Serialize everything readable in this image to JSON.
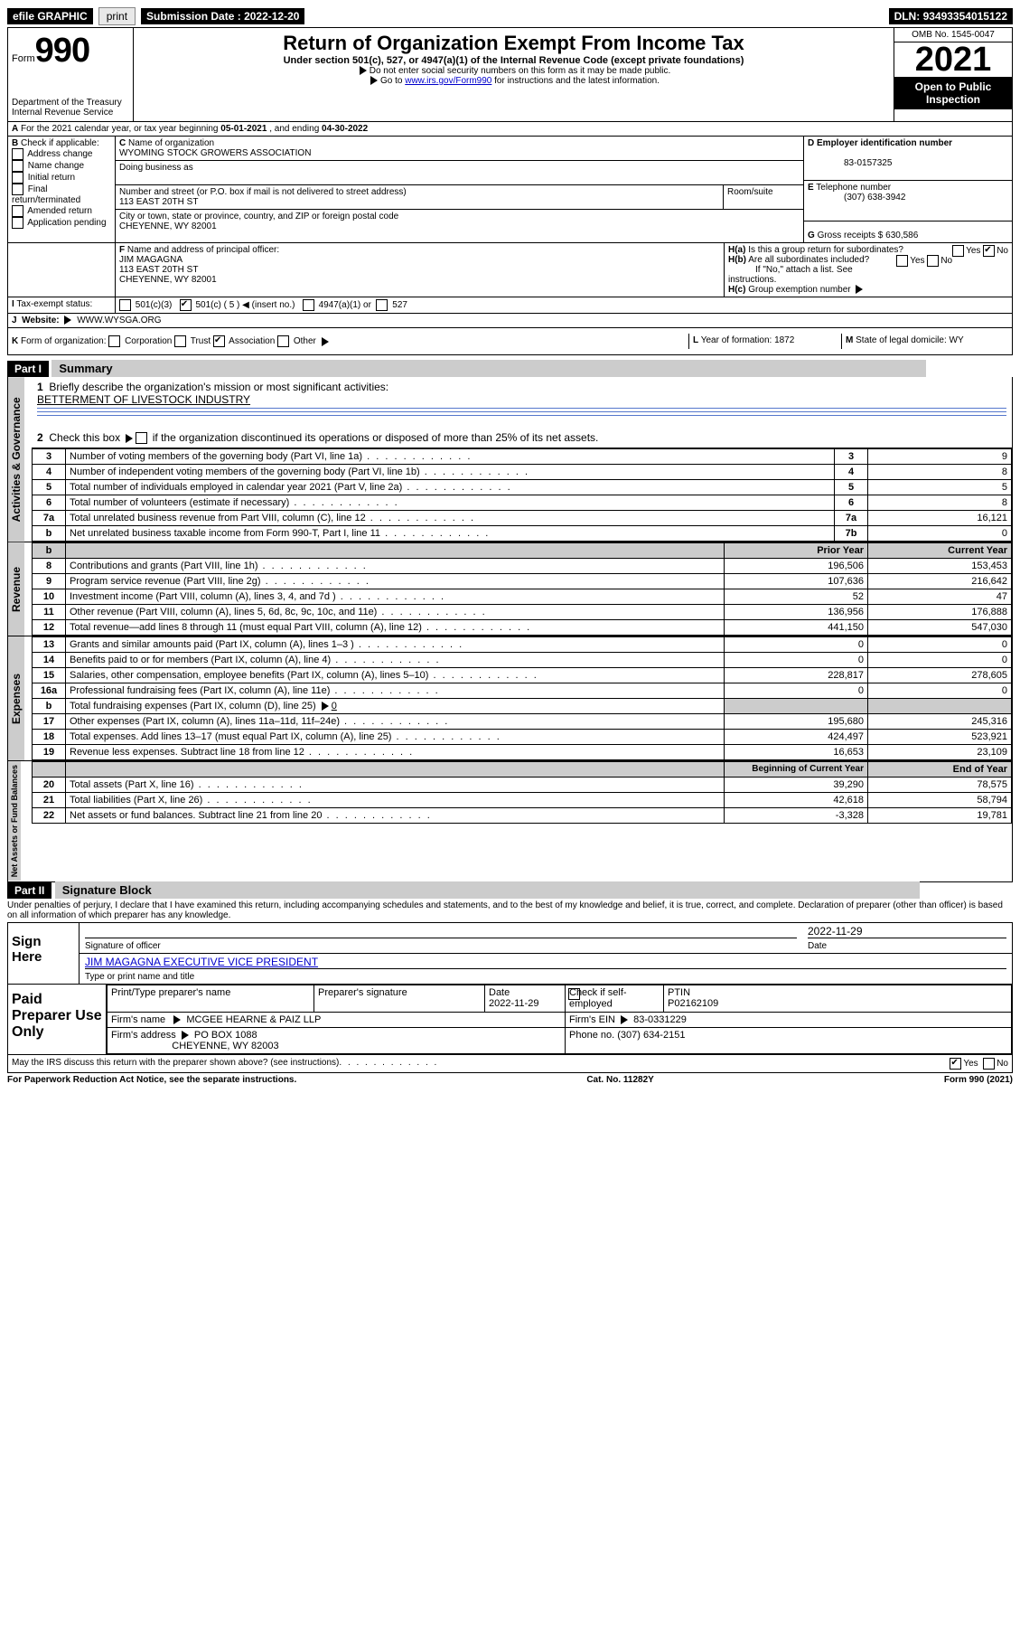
{
  "topbar": {
    "efile": "efile GRAPHIC",
    "print": "print",
    "subdate_lbl": "Submission Date : ",
    "subdate": "2022-12-20",
    "dln_lbl": "DLN: ",
    "dln": "93493354015122"
  },
  "hdr": {
    "form_word": "Form",
    "form_num": "990",
    "dept": "Department of the Treasury",
    "irs": "Internal Revenue Service",
    "title": "Return of Organization Exempt From Income Tax",
    "sub": "Under section 501(c), 527, or 4947(a)(1) of the Internal Revenue Code (except private foundations)",
    "note1": "Do not enter social security numbers on this form as it may be made public.",
    "note2_pre": "Go to ",
    "note2_link": "www.irs.gov/Form990",
    "note2_post": " for instructions and the latest information.",
    "omb": "OMB No. 1545-0047",
    "year": "2021",
    "open": "Open to Public Inspection"
  },
  "A": {
    "text_pre": "For the 2021 calendar year, or tax year beginning ",
    "begin": "05-01-2021",
    "mid": " , and ending ",
    "end": "04-30-2022"
  },
  "B": {
    "lbl": "Check if applicable:",
    "opts": [
      "Address change",
      "Name change",
      "Initial return",
      "Final return/terminated",
      "Amended return",
      "Application pending"
    ]
  },
  "C": {
    "name_lbl": "Name of organization",
    "name": "WYOMING STOCK GROWERS ASSOCIATION",
    "dba_lbl": "Doing business as",
    "addr_lbl": "Number and street (or P.O. box if mail is not delivered to street address)",
    "room_lbl": "Room/suite",
    "addr": "113 EAST 20TH ST",
    "city_lbl": "City or town, state or province, country, and ZIP or foreign postal code",
    "city": "CHEYENNE, WY  82001"
  },
  "D": {
    "lbl": "Employer identification number",
    "val": "83-0157325"
  },
  "E": {
    "lbl": "Telephone number",
    "val": "(307) 638-3942"
  },
  "G": {
    "lbl": "Gross receipts $ ",
    "val": "630,586"
  },
  "F": {
    "lbl": "Name and address of principal officer:",
    "name": "JIM MAGAGNA",
    "addr1": "113 EAST 20TH ST",
    "addr2": "CHEYENNE, WY  82001"
  },
  "H": {
    "a": "Is this a group return for subordinates?",
    "a_ans": "No",
    "b": "Are all subordinates included?",
    "b_note": "If \"No,\" attach a list. See instructions.",
    "c": "Group exemption number"
  },
  "I": {
    "lbl": "Tax-exempt status:",
    "o1": "501(c)(3)",
    "o2": "501(c) ( 5 )",
    "o2_note": "(insert no.)",
    "o3": "4947(a)(1) or",
    "o4": "527"
  },
  "J": {
    "lbl": "Website:",
    "val": "WWW.WYSGA.ORG"
  },
  "K": {
    "lbl": "Form of organization:",
    "o1": "Corporation",
    "o2": "Trust",
    "o3": "Association",
    "o4": "Other"
  },
  "L": {
    "lbl": "Year of formation: ",
    "val": "1872"
  },
  "M": {
    "lbl": "State of legal domicile: ",
    "val": "WY"
  },
  "partI": {
    "bar": "Part I",
    "title": "Summary",
    "l1": "Briefly describe the organization's mission or most significant activities:",
    "l1_val": "BETTERMENT OF LIVESTOCK INDUSTRY",
    "l2": "Check this box",
    "l2_post": "if the organization discontinued its operations or disposed of more than 25% of its net assets.",
    "rows_top": [
      {
        "n": "3",
        "t": "Number of voting members of the governing body (Part VI, line 1a)",
        "r": "3",
        "v": "9"
      },
      {
        "n": "4",
        "t": "Number of independent voting members of the governing body (Part VI, line 1b)",
        "r": "4",
        "v": "8"
      },
      {
        "n": "5",
        "t": "Total number of individuals employed in calendar year 2021 (Part V, line 2a)",
        "r": "5",
        "v": "5"
      },
      {
        "n": "6",
        "t": "Total number of volunteers (estimate if necessary)",
        "r": "6",
        "v": "8"
      },
      {
        "n": "7a",
        "t": "Total unrelated business revenue from Part VIII, column (C), line 12",
        "r": "7a",
        "v": "16,121"
      },
      {
        "n": "b",
        "t": "Net unrelated business taxable income from Form 990-T, Part I, line 11",
        "r": "7b",
        "v": "0"
      }
    ],
    "col_prior": "Prior Year",
    "col_current": "Current Year",
    "revenue": [
      {
        "n": "8",
        "t": "Contributions and grants (Part VIII, line 1h)",
        "p": "196,506",
        "c": "153,453"
      },
      {
        "n": "9",
        "t": "Program service revenue (Part VIII, line 2g)",
        "p": "107,636",
        "c": "216,642"
      },
      {
        "n": "10",
        "t": "Investment income (Part VIII, column (A), lines 3, 4, and 7d )",
        "p": "52",
        "c": "47"
      },
      {
        "n": "11",
        "t": "Other revenue (Part VIII, column (A), lines 5, 6d, 8c, 9c, 10c, and 11e)",
        "p": "136,956",
        "c": "176,888"
      },
      {
        "n": "12",
        "t": "Total revenue—add lines 8 through 11 (must equal Part VIII, column (A), line 12)",
        "p": "441,150",
        "c": "547,030"
      }
    ],
    "expenses": [
      {
        "n": "13",
        "t": "Grants and similar amounts paid (Part IX, column (A), lines 1–3 )",
        "p": "0",
        "c": "0"
      },
      {
        "n": "14",
        "t": "Benefits paid to or for members (Part IX, column (A), line 4)",
        "p": "0",
        "c": "0"
      },
      {
        "n": "15",
        "t": "Salaries, other compensation, employee benefits (Part IX, column (A), lines 5–10)",
        "p": "228,817",
        "c": "278,605"
      },
      {
        "n": "16a",
        "t": "Professional fundraising fees (Part IX, column (A), line 11e)",
        "p": "0",
        "c": "0"
      },
      {
        "n": "b",
        "t": "Total fundraising expenses (Part IX, column (D), line 25)",
        "sub": "0",
        "noval": true
      },
      {
        "n": "17",
        "t": "Other expenses (Part IX, column (A), lines 11a–11d, 11f–24e)",
        "p": "195,680",
        "c": "245,316"
      },
      {
        "n": "18",
        "t": "Total expenses. Add lines 13–17 (must equal Part IX, column (A), line 25)",
        "p": "424,497",
        "c": "523,921"
      },
      {
        "n": "19",
        "t": "Revenue less expenses. Subtract line 18 from line 12",
        "p": "16,653",
        "c": "23,109"
      }
    ],
    "col_begin": "Beginning of Current Year",
    "col_end": "End of Year",
    "netassets": [
      {
        "n": "20",
        "t": "Total assets (Part X, line 16)",
        "p": "39,290",
        "c": "78,575"
      },
      {
        "n": "21",
        "t": "Total liabilities (Part X, line 26)",
        "p": "42,618",
        "c": "58,794"
      },
      {
        "n": "22",
        "t": "Net assets or fund balances. Subtract line 21 from line 20",
        "p": "-3,328",
        "c": "19,781"
      }
    ],
    "side_ag": "Activities & Governance",
    "side_rev": "Revenue",
    "side_exp": "Expenses",
    "side_na": "Net Assets or Fund Balances"
  },
  "partII": {
    "bar": "Part II",
    "title": "Signature Block",
    "decl": "Under penalties of perjury, I declare that I have examined this return, including accompanying schedules and statements, and to the best of my knowledge and belief, it is true, correct, and complete. Declaration of preparer (other than officer) is based on all information of which preparer has any knowledge.",
    "sign_here": "Sign Here",
    "sig_officer": "Signature of officer",
    "date": "Date",
    "sig_date": "2022-11-29",
    "name_title": "JIM MAGAGNA  EXECUTIVE VICE PRESIDENT",
    "name_title_lbl": "Type or print name and title",
    "paid": "Paid Preparer Use Only",
    "pt_name": "Print/Type preparer's name",
    "pt_sig": "Preparer's signature",
    "pt_date_lbl": "Date",
    "pt_date": "2022-11-29",
    "pt_self": "Check         if self-employed",
    "ptin_lbl": "PTIN",
    "ptin": "P02162109",
    "firm_name_lbl": "Firm's name",
    "firm_name": "MCGEE HEARNE & PAIZ LLP",
    "firm_ein_lbl": "Firm's EIN",
    "firm_ein": "83-0331229",
    "firm_addr_lbl": "Firm's address",
    "firm_addr1": "PO BOX 1088",
    "firm_addr2": "CHEYENNE, WY  82003",
    "phone_lbl": "Phone no. ",
    "phone": "(307) 634-2151",
    "discuss": "May the IRS discuss this return with the preparer shown above? (see instructions)",
    "discuss_ans": "Yes"
  },
  "footer": {
    "left": "For Paperwork Reduction Act Notice, see the separate instructions.",
    "mid": "Cat. No. 11282Y",
    "right": "Form 990 (2021)"
  }
}
